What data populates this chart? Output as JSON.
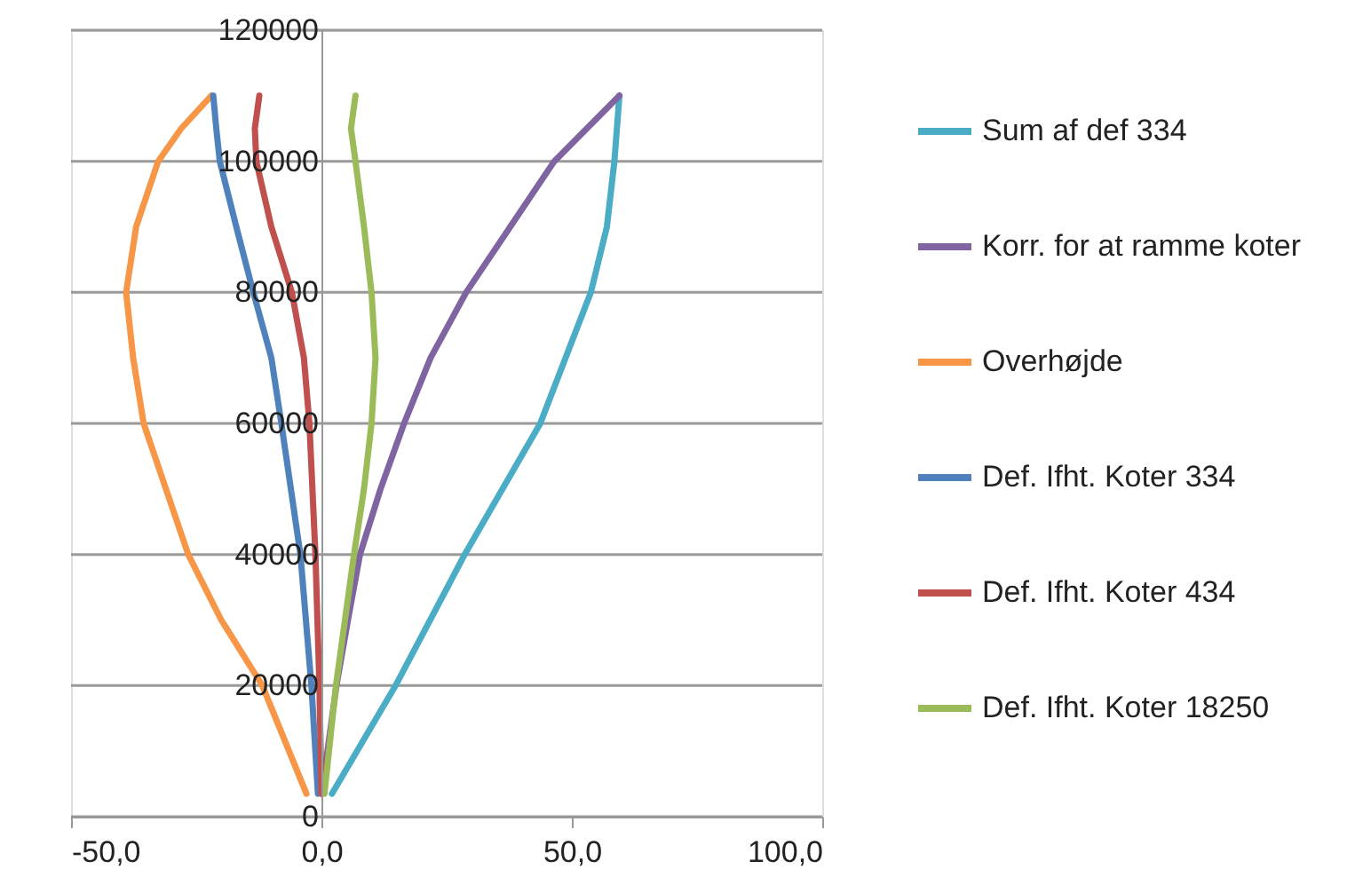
{
  "chart_data": {
    "type": "line",
    "xlim": [
      -50,
      100
    ],
    "ylim": [
      0,
      120000
    ],
    "xticks": [
      {
        "value": -50,
        "label": "-50,0"
      },
      {
        "value": 0,
        "label": "0,0"
      },
      {
        "value": 50,
        "label": "50,0"
      },
      {
        "value": 100,
        "label": "100,0"
      }
    ],
    "yticks": [
      0,
      20000,
      40000,
      60000,
      80000,
      100000,
      120000
    ],
    "grid": "y",
    "legend": "right",
    "marker": "none",
    "line_style": "solid",
    "series": [
      {
        "name": "Sum af def 334",
        "color": "#4bacc6",
        "x": [
          2.1,
          14.8,
          28.6,
          43.7,
          53.8,
          57,
          58.5,
          59.5
        ],
        "values": [
          3500,
          20000,
          40000,
          60000,
          80000,
          90000,
          100000,
          110000
        ]
      },
      {
        "name": "Korr. for at ramme koter",
        "color": "#8064a2",
        "x": [
          0,
          1.2,
          3,
          5.3,
          7.7,
          11.8,
          16.5,
          21.8,
          28.9,
          37.7,
          46.5,
          59.5
        ],
        "values": [
          3500,
          10000,
          20000,
          30000,
          40000,
          50000,
          60000,
          70000,
          80000,
          90000,
          100000,
          110000
        ]
      },
      {
        "name": "Overhøjde",
        "color": "#f79646",
        "x": [
          -3,
          -11.8,
          -20,
          -26.6,
          -35.5,
          -37.6,
          -39,
          -37,
          -32.6,
          -28,
          -22
        ],
        "values": [
          3500,
          20000,
          30000,
          40000,
          60000,
          70000,
          80000,
          90000,
          100000,
          105000,
          110000
        ]
      },
      {
        "name": "Def. Ifht. Koter 334",
        "color": "#4f81bd",
        "x": [
          -0.7,
          -2,
          -4.2,
          -8,
          -10,
          -13.6,
          -17,
          -20.3,
          -21,
          -21.6
        ],
        "values": [
          3500,
          20000,
          40000,
          60000,
          70000,
          80000,
          90000,
          100000,
          105000,
          110000
        ]
      },
      {
        "name": "Def. Ifht. Koter 434",
        "color": "#c0504d",
        "x": [
          0,
          -0.4,
          -1.2,
          -2.4,
          -3.5,
          -5.9,
          -10,
          -13,
          -13.3,
          -12.4
        ],
        "values": [
          3500,
          20000,
          40000,
          60000,
          70000,
          80000,
          90000,
          100000,
          105000,
          110000
        ]
      },
      {
        "name": "Def. Ifht. Koter 18250",
        "color": "#9bbb59",
        "x": [
          0.6,
          2.9,
          6.5,
          8.5,
          10,
          10.8,
          10,
          8.5,
          6.8,
          5.9,
          6.8
        ],
        "values": [
          3500,
          20000,
          40000,
          50000,
          60000,
          70000,
          80000,
          90000,
          100000,
          105000,
          110000
        ]
      }
    ]
  }
}
